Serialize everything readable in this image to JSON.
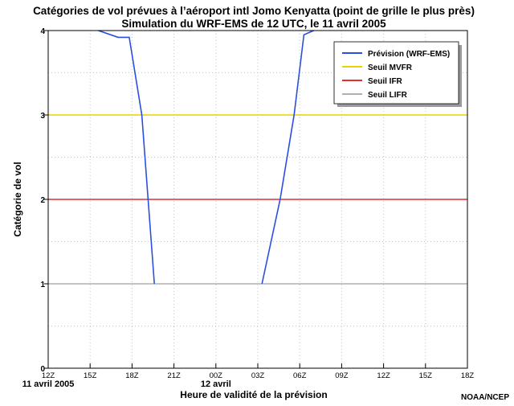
{
  "chart_data": {
    "type": "line",
    "title": "Catégories de vol prévues à l’aéroport intl Jomo Kenyatta (point de grille le plus près)",
    "subtitle": "Simulation du WRF-EMS de 12 UTC, le 11 avril 2005",
    "xlabel": "Heure de validité de la prévision",
    "ylabel": "Catégorie de vol",
    "x_ticks": [
      "12Z",
      "15Z",
      "18Z",
      "21Z",
      "00Z",
      "03Z",
      "06Z",
      "09Z",
      "12Z",
      "15Z",
      "18Z"
    ],
    "x_tick_hours": [
      0,
      3,
      6,
      9,
      12,
      15,
      18,
      21,
      24,
      27,
      30
    ],
    "date_labels": [
      {
        "text": "11 avril 2005",
        "at_hour": 0
      },
      {
        "text": "12 avril",
        "at_hour": 12
      }
    ],
    "xlim_hours": [
      0,
      30
    ],
    "ylim": [
      0,
      4
    ],
    "y_ticks": [
      0,
      1,
      2,
      3,
      4
    ],
    "grid": true,
    "legend_position": "top-right",
    "series": [
      {
        "name": "Prévision (WRF-EMS)",
        "color": "#2a4fe0",
        "segments": [
          [
            [
              0,
              4.6
            ],
            [
              3.6,
              4.0
            ],
            [
              5.0,
              3.92
            ],
            [
              5.8,
              3.92
            ],
            [
              6.7,
              3.0
            ],
            [
              7.6,
              1.0
            ]
          ],
          [
            [
              15.3,
              1.0
            ],
            [
              16.6,
              2.0
            ],
            [
              17.6,
              3.0
            ],
            [
              18.3,
              3.95
            ],
            [
              19.0,
              4.0
            ],
            [
              30,
              4.6
            ]
          ]
        ]
      },
      {
        "name": "Seuil MVFR",
        "color": "#e8d400",
        "values": [
          3,
          3
        ]
      },
      {
        "name": "Seuil IFR",
        "color": "#e03030",
        "values": [
          2,
          2
        ]
      },
      {
        "name": "Seuil LIFR",
        "color": "#b0b0b0",
        "values": [
          1,
          1
        ]
      }
    ]
  },
  "credit": "NOAA/NCEP"
}
